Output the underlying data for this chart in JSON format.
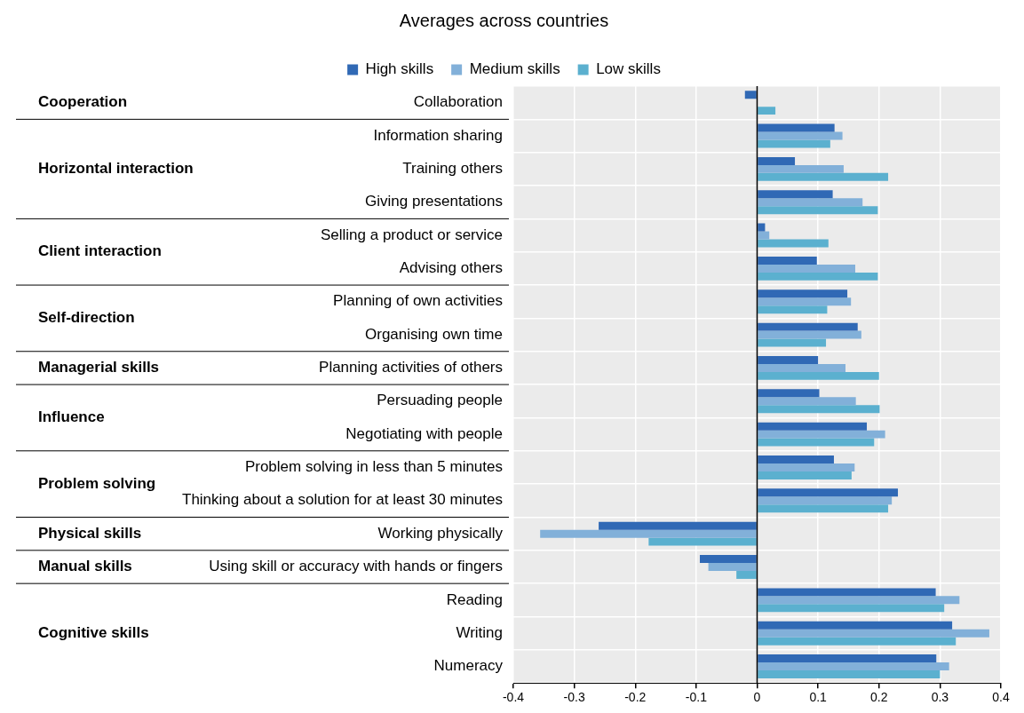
{
  "chart_data": {
    "type": "bar",
    "orientation": "horizontal",
    "title": "Averages across countries",
    "categories": [
      "Collaboration",
      "Information sharing",
      "Training others",
      "Giving presentations",
      "Selling a product or service",
      "Advising others",
      "Planning of own activities",
      "Organising own time",
      "Planning activities of others",
      "Persuading people",
      "Negotiating with people",
      "Problem solving in less than 5 minutes",
      "Thinking about a solution for at least 30 minutes",
      "Working physically",
      "Using skill or accuracy with hands or fingers",
      "Reading",
      "Writing",
      "Numeracy"
    ],
    "series": [
      {
        "name": "High skills",
        "color": "#3069b5",
        "values": [
          -0.02,
          0.127,
          0.062,
          0.124,
          0.013,
          0.098,
          0.148,
          0.165,
          0.1,
          0.102,
          0.18,
          0.126,
          0.231,
          -0.26,
          -0.094,
          0.293,
          0.32,
          0.294
        ]
      },
      {
        "name": "Medium skills",
        "color": "#82b0d9",
        "values": [
          null,
          0.14,
          0.142,
          0.173,
          0.02,
          0.161,
          0.154,
          0.171,
          0.145,
          0.162,
          0.21,
          0.16,
          0.221,
          -0.356,
          -0.08,
          0.332,
          0.381,
          0.315
        ]
      },
      {
        "name": "Low skills",
        "color": "#5bb0cf",
        "values": [
          0.03,
          0.12,
          0.215,
          0.198,
          0.117,
          0.198,
          0.115,
          0.113,
          0.2,
          0.201,
          0.192,
          0.155,
          0.215,
          -0.178,
          -0.034,
          0.307,
          0.326,
          0.3
        ]
      }
    ],
    "xlim": [
      -0.4,
      0.4
    ],
    "xticks": [
      -0.4,
      -0.3,
      -0.2,
      -0.1,
      0,
      0.1,
      0.2,
      0.3,
      0.4
    ],
    "grid": true,
    "legend": "top",
    "annotations": [
      "Cooperation",
      "Horizontal interaction",
      "Client interaction",
      "Self-direction",
      "Managerial skills",
      "Influence",
      "Problem solving",
      "Physical skills",
      "Manual skills",
      "Cognitive skills"
    ]
  }
}
